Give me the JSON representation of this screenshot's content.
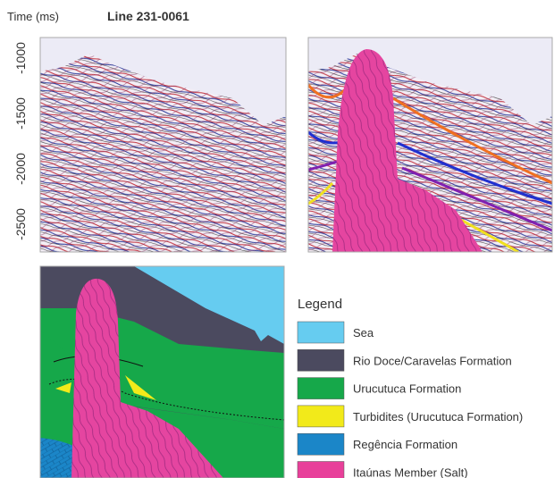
{
  "figure": {
    "axis_label": "Time (ms)",
    "title": "Line 231-0061",
    "ticks": [
      "-1000",
      "-1500",
      "-2000",
      "-2500"
    ],
    "legend": {
      "title": "Legend",
      "items": [
        {
          "label": "Sea",
          "color": "#66ccf0"
        },
        {
          "label": "Rio Doce/Caravelas Formation",
          "color": "#4b4a5f"
        },
        {
          "label": "Urucutuca Formation",
          "color": "#16a84a"
        },
        {
          "label": "Turbidites (Urucutuca Formation)",
          "color": "#f2ea1a"
        },
        {
          "label": "Regência Formation",
          "color": "#1b86c8"
        },
        {
          "label": "Itaúnas Member (Salt)",
          "color": "#e8409a"
        }
      ]
    }
  }
}
